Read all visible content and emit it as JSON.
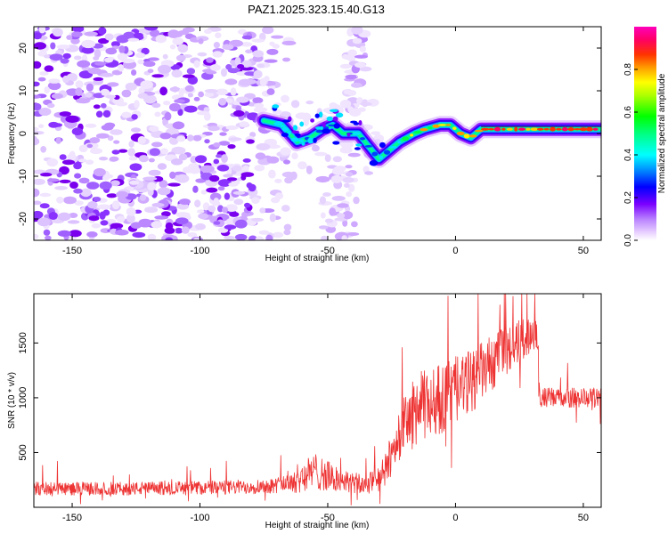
{
  "title": "PAZ1.2025.323.15.40.G13",
  "chart_data": [
    {
      "type": "heatmap",
      "xlabel": "Height of straight line (km)",
      "ylabel": "Frequency (Hz)",
      "xlim": [
        -165,
        57
      ],
      "ylim": [
        -25,
        25
      ],
      "xticks": [
        -150,
        -100,
        -50,
        0,
        50
      ],
      "yticks": [
        -20,
        -10,
        0,
        10,
        20
      ],
      "colorbar": {
        "label": "Normalized spectral amplitude",
        "range": [
          0,
          1
        ],
        "ticks": [
          0.0,
          0.2,
          0.4,
          0.6,
          0.8
        ]
      },
      "signal_trace": [
        {
          "x": -75,
          "y": 3
        },
        {
          "x": -68,
          "y": 2
        },
        {
          "x": -62,
          "y": -2
        },
        {
          "x": -57,
          "y": -1
        },
        {
          "x": -52,
          "y": 1
        },
        {
          "x": -48,
          "y": 2
        },
        {
          "x": -44,
          "y": 0
        },
        {
          "x": -38,
          "y": 0
        },
        {
          "x": -34,
          "y": -3
        },
        {
          "x": -30,
          "y": -6
        },
        {
          "x": -26,
          "y": -4
        },
        {
          "x": -22,
          "y": -2
        },
        {
          "x": -16,
          "y": 0
        },
        {
          "x": -12,
          "y": 1
        },
        {
          "x": -6,
          "y": 2
        },
        {
          "x": -2,
          "y": 2
        },
        {
          "x": 2,
          "y": 0
        },
        {
          "x": 6,
          "y": -1
        },
        {
          "x": 10,
          "y": 1
        },
        {
          "x": 20,
          "y": 1
        },
        {
          "x": 35,
          "y": 1
        },
        {
          "x": 57,
          "y": 1
        }
      ]
    },
    {
      "type": "line",
      "xlabel": "Height of straight line (km)",
      "ylabel": "SNR (10 * v/v)",
      "xlim": [
        -165,
        57
      ],
      "ylim": [
        0,
        1950
      ],
      "xticks": [
        -150,
        -100,
        -50,
        0,
        50
      ],
      "yticks": [
        500,
        1000,
        1500
      ],
      "color": "#ee3333",
      "series": [
        {
          "name": "SNR",
          "trend": [
            {
              "x": -165,
              "mean": 170,
              "noise": 60
            },
            {
              "x": -130,
              "mean": 170,
              "noise": 60
            },
            {
              "x": -90,
              "mean": 180,
              "noise": 65
            },
            {
              "x": -70,
              "mean": 200,
              "noise": 70
            },
            {
              "x": -62,
              "mean": 260,
              "noise": 130
            },
            {
              "x": -55,
              "mean": 330,
              "noise": 170
            },
            {
              "x": -45,
              "mean": 240,
              "noise": 110
            },
            {
              "x": -35,
              "mean": 200,
              "noise": 90
            },
            {
              "x": -28,
              "mean": 300,
              "noise": 150
            },
            {
              "x": -22,
              "mean": 680,
              "noise": 250
            },
            {
              "x": -15,
              "mean": 900,
              "noise": 330
            },
            {
              "x": -5,
              "mean": 1000,
              "noise": 320
            },
            {
              "x": 5,
              "mean": 1130,
              "noise": 300
            },
            {
              "x": 15,
              "mean": 1330,
              "noise": 250
            },
            {
              "x": 25,
              "mean": 1520,
              "noise": 200
            },
            {
              "x": 32,
              "mean": 1620,
              "noise": 170
            },
            {
              "x": 33,
              "mean": 1000,
              "noise": 90
            },
            {
              "x": 57,
              "mean": 1000,
              "noise": 90
            }
          ]
        }
      ]
    }
  ]
}
